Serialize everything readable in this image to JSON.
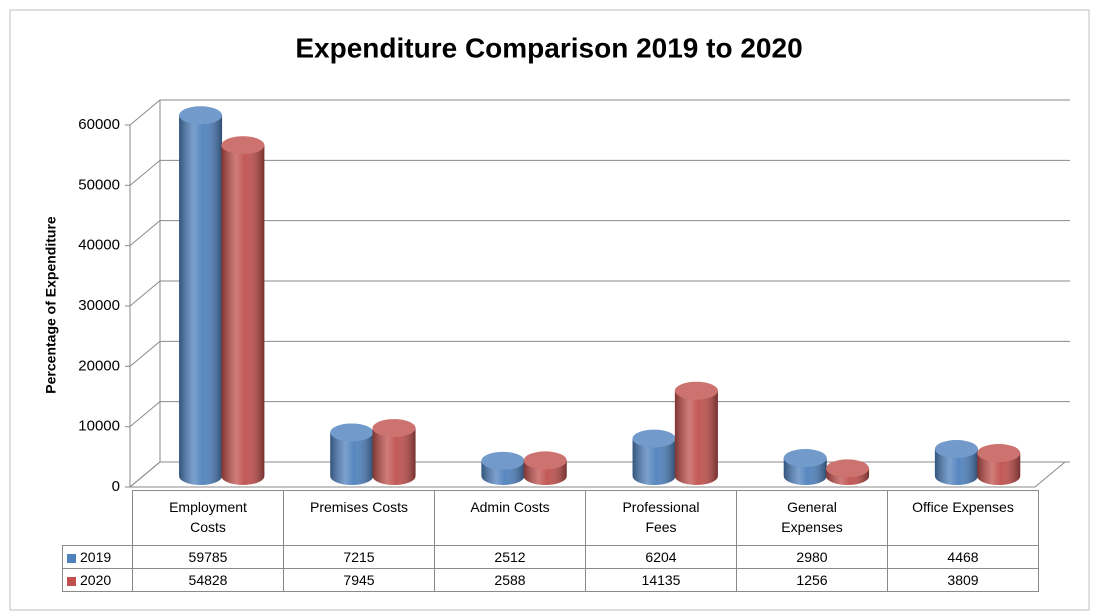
{
  "chart_data": {
    "type": "bar3d",
    "title": "Expenditure Comparison 2019 to 2020",
    "y_label": "Percentage of Expenditure",
    "categories": [
      "Employment Costs",
      "Premises Costs",
      "Admin Costs",
      "Professional Fees",
      "General Expenses",
      "Office Expenses"
    ],
    "series": [
      {
        "name": "2019",
        "color": "#4f81bd",
        "values": [
          59785,
          7215,
          2512,
          6204,
          2980,
          4468
        ]
      },
      {
        "name": "2020",
        "color": "#c0504d",
        "values": [
          54828,
          7945,
          2588,
          14135,
          1256,
          3809
        ]
      }
    ],
    "ylim": [
      0,
      60000
    ],
    "yticks": [
      0,
      10000,
      20000,
      30000,
      40000,
      50000,
      60000
    ],
    "grid": true,
    "data_table": true
  }
}
